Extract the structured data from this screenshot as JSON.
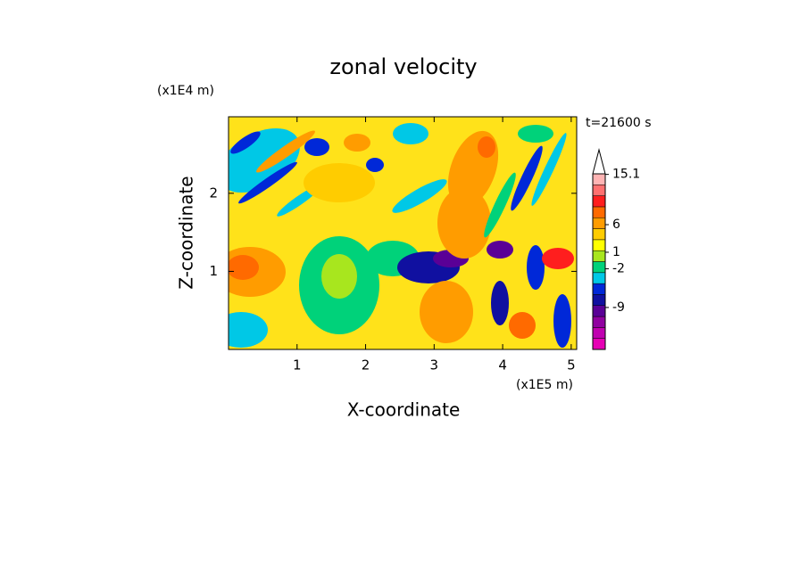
{
  "chart_data": {
    "type": "contour",
    "title": "zonal velocity",
    "subtitle": "t=21600 s",
    "x_label": "X-coordinate",
    "y_label": "Z-coordinate",
    "x_unit": "(x1E5 m)",
    "y_unit": "(x1E4 m)",
    "xlim": [
      0,
      5.08
    ],
    "xticks": [
      1,
      2,
      3,
      4,
      5
    ],
    "ylim": [
      0,
      2.98
    ],
    "yticks": [
      1,
      2
    ],
    "clim": [
      -16.6,
      15.2
    ],
    "cticks": [
      -9,
      -2,
      1,
      6,
      15.1
    ],
    "colorbar_colors": [
      "#e600b4",
      "#c000b0",
      "#9000a0",
      "#5a0096",
      "#1010a0",
      "#0028d8",
      "#00c8e6",
      "#00d27a",
      "#a8e61e",
      "#ffff00",
      "#ffcc00",
      "#ff9c00",
      "#ff6a00",
      "#ff1e1e",
      "#ff7070",
      "#ffb4b4"
    ]
  }
}
